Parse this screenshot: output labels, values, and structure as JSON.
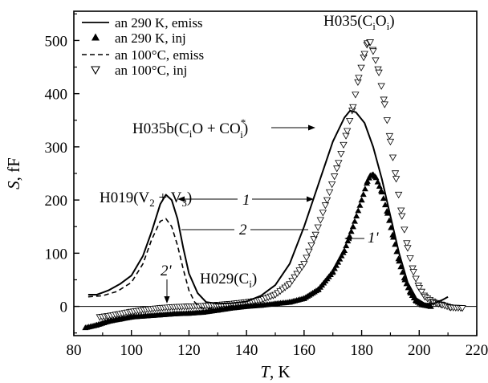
{
  "chart_data": {
    "type": "line",
    "xlabel": {
      "var": "T",
      "unit": ", K"
    },
    "ylabel": {
      "var": "S",
      "unit": ", fF"
    },
    "xlim": [
      80,
      220
    ],
    "ylim": [
      -55,
      555
    ],
    "x_ticks": [
      80,
      100,
      120,
      140,
      160,
      180,
      200,
      220
    ],
    "y_ticks": [
      0,
      100,
      200,
      300,
      400,
      500
    ],
    "zero_line": true,
    "grid": false,
    "legend_position": "top-left",
    "legend": [
      {
        "label": "an 290 K, emiss",
        "style": "solid-line"
      },
      {
        "label": "an 290 K, inj",
        "style": "filled-triangle-up"
      },
      {
        "label": "an 100°C, emiss",
        "style": "dashed-line"
      },
      {
        "label": "an 100°C, inj",
        "style": "open-triangle-down"
      }
    ],
    "series": [
      {
        "name": "an 290 K, emiss",
        "points": [
          [
            85,
            22
          ],
          [
            88,
            22
          ],
          [
            92,
            30
          ],
          [
            96,
            42
          ],
          [
            100,
            58
          ],
          [
            104,
            95
          ],
          [
            107,
            140
          ],
          [
            110,
            192
          ],
          [
            112,
            210
          ],
          [
            114,
            200
          ],
          [
            116,
            165
          ],
          [
            118,
            110
          ],
          [
            120,
            62
          ],
          [
            123,
            25
          ],
          [
            126,
            8
          ],
          [
            130,
            5
          ],
          [
            135,
            6
          ],
          [
            140,
            9
          ],
          [
            145,
            20
          ],
          [
            150,
            40
          ],
          [
            155,
            80
          ],
          [
            160,
            150
          ],
          [
            165,
            230
          ],
          [
            170,
            310
          ],
          [
            174,
            355
          ],
          [
            176,
            368
          ],
          [
            178,
            365
          ],
          [
            181,
            345
          ],
          [
            184,
            300
          ],
          [
            187,
            240
          ],
          [
            190,
            170
          ],
          [
            193,
            100
          ],
          [
            196,
            45
          ],
          [
            199,
            15
          ],
          [
            202,
            5
          ],
          [
            205,
            5
          ],
          [
            208,
            12
          ],
          [
            210,
            18
          ]
        ]
      },
      {
        "name": "an 290 K, inj",
        "points": [
          [
            84,
            -40
          ],
          [
            88,
            -35
          ],
          [
            92,
            -28
          ],
          [
            96,
            -24
          ],
          [
            100,
            -20
          ],
          [
            105,
            -18
          ],
          [
            110,
            -16
          ],
          [
            115,
            -14
          ],
          [
            120,
            -13
          ],
          [
            125,
            -11
          ],
          [
            130,
            -7
          ],
          [
            135,
            -3
          ],
          [
            140,
            0
          ],
          [
            145,
            2
          ],
          [
            150,
            5
          ],
          [
            155,
            8
          ],
          [
            160,
            15
          ],
          [
            165,
            32
          ],
          [
            170,
            65
          ],
          [
            174,
            105
          ],
          [
            177,
            150
          ],
          [
            180,
            200
          ],
          [
            182,
            235
          ],
          [
            183,
            246
          ],
          [
            184,
            248
          ],
          [
            185,
            242
          ],
          [
            187,
            215
          ],
          [
            189,
            175
          ],
          [
            191,
            130
          ],
          [
            193,
            85
          ],
          [
            195,
            50
          ],
          [
            197,
            25
          ],
          [
            199,
            10
          ],
          [
            201,
            3
          ],
          [
            204,
            0
          ]
        ]
      },
      {
        "name": "an 100°C, emiss",
        "points": [
          [
            85,
            18
          ],
          [
            90,
            20
          ],
          [
            95,
            28
          ],
          [
            100,
            45
          ],
          [
            104,
            80
          ],
          [
            107,
            125
          ],
          [
            110,
            160
          ],
          [
            112,
            165
          ],
          [
            114,
            150
          ],
          [
            116,
            115
          ],
          [
            118,
            70
          ],
          [
            120,
            30
          ],
          [
            122,
            8
          ],
          [
            124,
            -2
          ],
          [
            126,
            -5
          ],
          [
            128,
            -3
          ]
        ]
      },
      {
        "name": "an 100°C, inj",
        "points": [
          [
            89,
            -20
          ],
          [
            92,
            -18
          ],
          [
            96,
            -14
          ],
          [
            100,
            -10
          ],
          [
            105,
            -6
          ],
          [
            110,
            -3
          ],
          [
            115,
            -1
          ],
          [
            120,
            0
          ],
          [
            125,
            1
          ],
          [
            130,
            3
          ],
          [
            135,
            5
          ],
          [
            140,
            8
          ],
          [
            145,
            12
          ],
          [
            150,
            22
          ],
          [
            155,
            42
          ],
          [
            160,
            80
          ],
          [
            164,
            135
          ],
          [
            168,
            200
          ],
          [
            172,
            270
          ],
          [
            175,
            330
          ],
          [
            177,
            375
          ],
          [
            179,
            430
          ],
          [
            181,
            475
          ],
          [
            182,
            495
          ],
          [
            183,
            497
          ],
          [
            184,
            480
          ],
          [
            186,
            440
          ],
          [
            188,
            380
          ],
          [
            190,
            310
          ],
          [
            192,
            240
          ],
          [
            194,
            170
          ],
          [
            196,
            110
          ],
          [
            198,
            65
          ],
          [
            200,
            35
          ],
          [
            202,
            18
          ],
          [
            205,
            8
          ],
          [
            208,
            3
          ],
          [
            211,
            -2
          ],
          [
            215,
            -3
          ]
        ]
      }
    ],
    "annotations": {
      "h035": {
        "pre": "H035(C",
        "sub1": "i",
        "mid": "O",
        "sub2": "i",
        "post": ")"
      },
      "h035b": {
        "pre": "H035b(C",
        "sub1": "i",
        "mid1": "O + CO",
        "sup": "*",
        "sub2": "i",
        "post": ")"
      },
      "h019": {
        "pre": "H019(V",
        "sub1": "2",
        "mid": " + V",
        "sub2": "3",
        "post": ")"
      },
      "h029": {
        "pre": "H029(C",
        "sub1": "i",
        "post": ")"
      },
      "label1": "1",
      "label2": "2",
      "label1p": "1'",
      "label2p": "2'"
    }
  }
}
